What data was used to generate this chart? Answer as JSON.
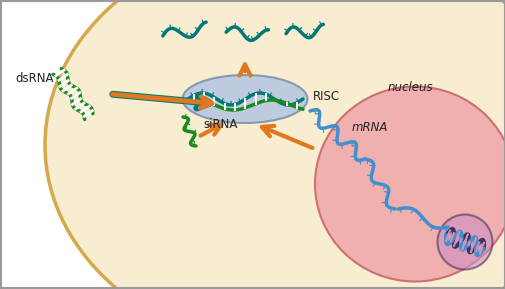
{
  "bg_outer": "#ffffff",
  "bg_cell": "#f8edd0",
  "bg_cell_edge": "#d4a84b",
  "bg_nucleus": "#f0b0b0",
  "bg_nucleus_edge": "#cc7070",
  "bg_risc": "#b8c8e0",
  "bg_risc_edge": "#8090b0",
  "arrow_color": "#e07820",
  "dna_green": "#1a8a1a",
  "dna_teal": "#007878",
  "dna_blue": "#4090cc",
  "dna_purple_dark": "#403060",
  "dna_purple_light": "#9080c0",
  "dna_pink": "#d090c0",
  "rung_color": "#ffffff",
  "label_color": "#222222",
  "nucleus_label": "nucleus",
  "mrna_label": "mRNA",
  "dsrna_label": "dsRNA",
  "sirna_label": "siRNA",
  "risc_label": "RISC",
  "figsize": [
    5.06,
    2.89
  ],
  "dpi": 100
}
